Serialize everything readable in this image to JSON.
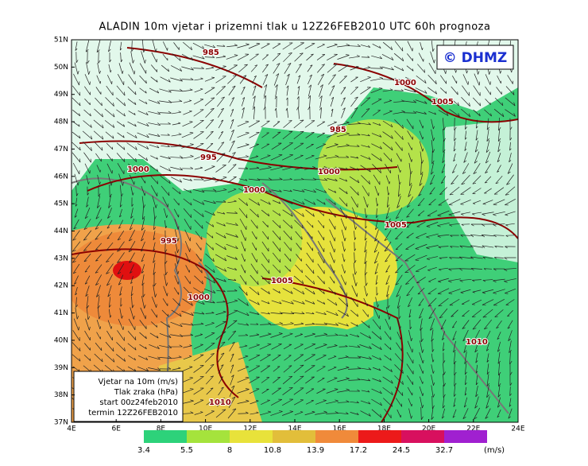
{
  "title": "ALADIN  10m  vjetar  i  prizemni  tlak  u  12Z26FEB2010  UTC  60h  prognoza",
  "logo": "© DHMZ",
  "lat_labels": [
    "51N",
    "50N",
    "49N",
    "48N",
    "47N",
    "46N",
    "45N",
    "44N",
    "43N",
    "42N",
    "41N",
    "40N",
    "39N",
    "38N",
    "37N"
  ],
  "lon_labels": [
    "4E",
    "6E",
    "8E",
    "10E",
    "12E",
    "14E",
    "16E",
    "18E",
    "20E",
    "22E",
    "24E"
  ],
  "info_box": [
    "Vjetar na 10m (m/s)",
    "Tlak zraka (hPa)",
    "start 00z24feb2010",
    "termin 12Z26FEB2010"
  ],
  "isobar_labels": [
    "985",
    "1000",
    "1005",
    "985",
    "995",
    "1000",
    "1000",
    "1000",
    "1005",
    "995",
    "1005",
    "1000",
    "1010",
    "1010"
  ],
  "colorbar": {
    "colors": [
      "#2dd27a",
      "#a5e33c",
      "#e8e23a",
      "#e2be3a",
      "#f08a3a",
      "#ec1a1a",
      "#d8105e",
      "#a020d0"
    ],
    "labels": [
      "3.4",
      "5.5",
      "8",
      "10.8",
      "13.9",
      "17.2",
      "24.5",
      "32.7"
    ],
    "unit": "(m/s)"
  }
}
